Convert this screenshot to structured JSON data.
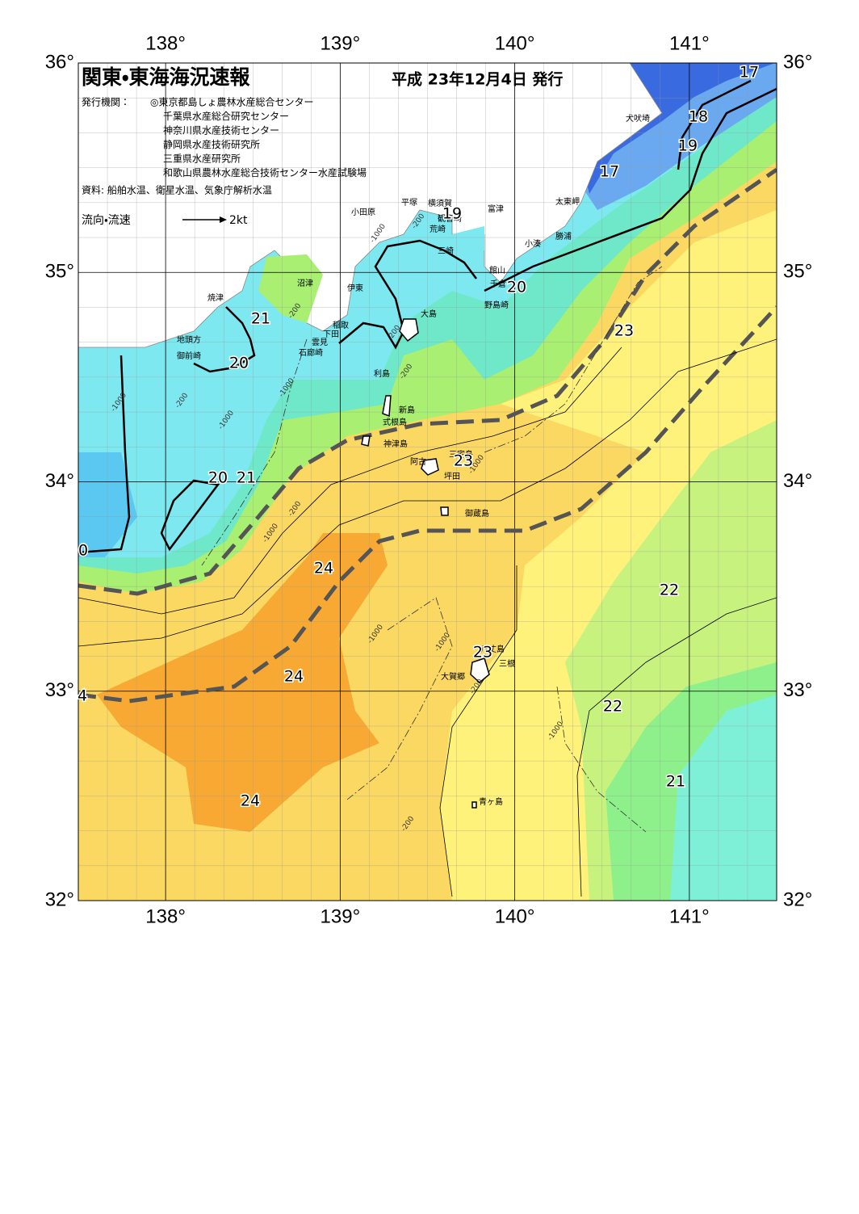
{
  "header": {
    "title": "関東・東海海況速報",
    "date": "平成 23年12月4日 発行",
    "publisher_label": "発行機関：",
    "publishers": [
      "◎東京都島しょ農林水産総合センター",
      "千葉県水産総合研究センター",
      "神奈川県水産技術センター",
      "静岡県水産技術研究所",
      "三重県水産研究所",
      "和歌山県農林水産総合技術センター水産試験場"
    ],
    "source": "資料: 船舶水温、衛星水温、気象庁解析水温"
  },
  "legend": {
    "label": "流向・流速",
    "speed": "2kt"
  },
  "axes": {
    "lon_range": [
      137.5,
      141.5
    ],
    "lat_range": [
      32,
      36
    ],
    "lon_ticks": [
      {
        "value": 138,
        "label": "138°"
      },
      {
        "value": 139,
        "label": "139°"
      },
      {
        "value": 140,
        "label": "140°"
      },
      {
        "value": 141,
        "label": "141°"
      }
    ],
    "lat_ticks": [
      {
        "value": 36,
        "label": "36°"
      },
      {
        "value": 35,
        "label": "35°"
      },
      {
        "value": 34,
        "label": "34°"
      },
      {
        "value": 33,
        "label": "33°"
      },
      {
        "value": 32,
        "label": "32°"
      }
    ]
  },
  "places": [
    "犬吠埼",
    "太東岬",
    "勝浦",
    "小湊",
    "富津",
    "横須賀",
    "観音崎",
    "荒崎",
    "三崎",
    "平塚",
    "小田原",
    "館山",
    "千倉",
    "野島崎",
    "沼津",
    "伊東",
    "稲取",
    "下田",
    "雲見",
    "石廊崎",
    "大島",
    "焼津",
    "地頭方",
    "御前崎",
    "利島",
    "新島",
    "式根島",
    "神津島",
    "三宅島",
    "阿古",
    "坪田",
    "御蔵島",
    "八丈島",
    "三根",
    "大賀郷",
    "青ヶ島"
  ],
  "contour_labels": [
    17,
    18,
    19,
    17,
    19,
    20,
    21,
    20,
    23,
    23,
    20,
    21,
    0,
    24,
    22,
    23,
    24,
    4,
    22,
    21,
    24
  ],
  "depth_labels": [
    -200,
    -1000,
    -200,
    -1000,
    -200,
    -200,
    -1000,
    -200,
    -1000,
    -200,
    -1000,
    -1000,
    -1000,
    -200,
    -1000,
    -1000,
    -200
  ]
}
